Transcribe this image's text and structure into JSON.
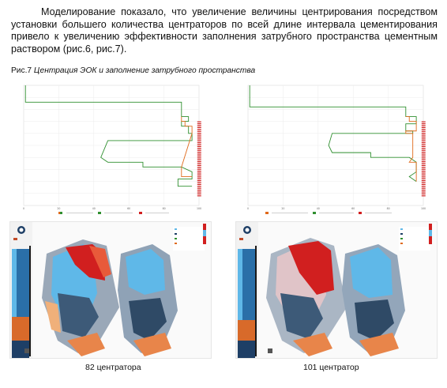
{
  "paragraph": "Моделирование показало, что увеличение величины центрирования посредством установки большего количества центраторов по всей длине интервала цементирования привело к увеличению эффективности заполнения затрубного пространства цементным раствором (рис.6, рис.7).",
  "figure": {
    "number": "Рис.7",
    "title": "Центрация ЭОК и заполнение затрубного пространства"
  },
  "panels": [
    {
      "caption": "82 центратора"
    },
    {
      "caption": "101 центратор"
    }
  ],
  "colors": {
    "green": "#2f8f2f",
    "orange": "#e06a1b",
    "red": "#d11f1f",
    "blue": "#5fb8e8",
    "navy": "#1e3f66"
  },
  "chart_data": [
    {
      "type": "line",
      "title": "",
      "xlabel": "",
      "ylabel": "",
      "xlim": [
        0,
        100
      ],
      "ylim": [
        0,
        100
      ],
      "series": [
        {
          "name": "",
          "color": "#2f8f2f",
          "x": [
            1,
            1,
            90,
            90,
            94,
            94,
            90,
            90,
            94,
            94,
            96,
            96,
            48,
            44,
            46,
            48,
            68,
            68,
            90,
            96,
            96,
            88,
            88,
            96
          ],
          "y": [
            0,
            14,
            14,
            26,
            26,
            30,
            30,
            34,
            34,
            40,
            40,
            46,
            46,
            60,
            62,
            64,
            64,
            68,
            68,
            72,
            78,
            78,
            84,
            84
          ]
        },
        {
          "name": "",
          "color": "#e06a1b",
          "x": [
            90,
            90,
            92,
            92,
            96,
            96,
            90,
            90,
            96
          ],
          "y": [
            26,
            30,
            30,
            34,
            34,
            40,
            68,
            76,
            76
          ]
        }
      ],
      "ticks": [
        "0",
        "20",
        "40",
        "60",
        "80",
        "100"
      ]
    },
    {
      "type": "line",
      "title": "",
      "xlabel": "",
      "ylabel": "",
      "xlim": [
        0,
        100
      ],
      "ylim": [
        0,
        100
      ],
      "series": [
        {
          "name": "",
          "color": "#2f8f2f",
          "x": [
            1,
            1,
            90,
            90,
            96,
            96,
            90,
            90,
            94,
            94,
            48,
            46,
            48,
            70,
            70,
            92,
            96,
            96,
            92,
            96
          ],
          "y": [
            0,
            18,
            18,
            26,
            26,
            32,
            32,
            38,
            38,
            40,
            40,
            50,
            56,
            56,
            60,
            60,
            64,
            72,
            76,
            80
          ]
        },
        {
          "name": "",
          "color": "#e06a1b",
          "x": [
            90,
            92,
            92,
            96,
            96,
            90,
            90,
            94,
            94,
            92,
            96,
            96
          ],
          "y": [
            26,
            26,
            30,
            30,
            38,
            38,
            40,
            40,
            60,
            64,
            64,
            80
          ]
        }
      ],
      "ticks": [
        "0",
        "20",
        "40",
        "60",
        "80",
        "100"
      ]
    }
  ]
}
